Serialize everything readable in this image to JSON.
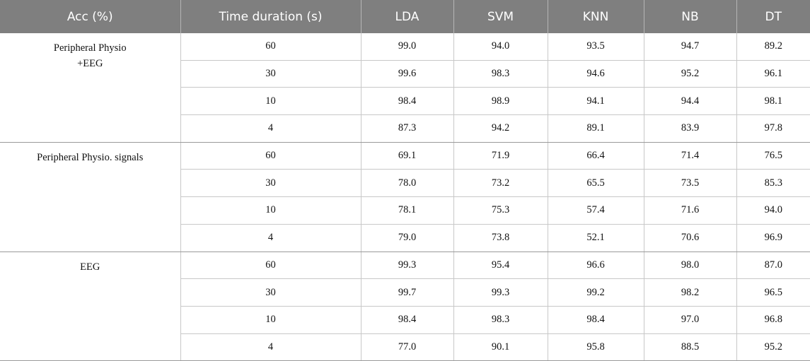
{
  "table": {
    "headers": [
      "Acc (%)",
      "Time duration (s)",
      "LDA",
      "SVM",
      "KNN",
      "NB",
      "DT"
    ],
    "groups": [
      {
        "label_lines": [
          "Peripheral Physio",
          "+EEG"
        ],
        "rows": [
          {
            "time": "60",
            "values": [
              "99.0",
              "94.0",
              "93.5",
              "94.7",
              "89.2"
            ]
          },
          {
            "time": "30",
            "values": [
              "99.6",
              "98.3",
              "94.6",
              "95.2",
              "96.1"
            ]
          },
          {
            "time": "10",
            "values": [
              "98.4",
              "98.9",
              "94.1",
              "94.4",
              "98.1"
            ]
          },
          {
            "time": "4",
            "values": [
              "87.3",
              "94.2",
              "89.1",
              "83.9",
              "97.8"
            ]
          }
        ]
      },
      {
        "label_lines": [
          "Peripheral Physio. signals"
        ],
        "rows": [
          {
            "time": "60",
            "values": [
              "69.1",
              "71.9",
              "66.4",
              "71.4",
              "76.5"
            ]
          },
          {
            "time": "30",
            "values": [
              "78.0",
              "73.2",
              "65.5",
              "73.5",
              "85.3"
            ]
          },
          {
            "time": "10",
            "values": [
              "78.1",
              "75.3",
              "57.4",
              "71.6",
              "94.0"
            ]
          },
          {
            "time": "4",
            "values": [
              "79.0",
              "73.8",
              "52.1",
              "70.6",
              "96.9"
            ]
          }
        ]
      },
      {
        "label_lines": [
          "EEG"
        ],
        "rows": [
          {
            "time": "60",
            "values": [
              "99.3",
              "95.4",
              "96.6",
              "98.0",
              "87.0"
            ]
          },
          {
            "time": "30",
            "values": [
              "99.7",
              "99.3",
              "99.2",
              "98.2",
              "96.5"
            ]
          },
          {
            "time": "10",
            "values": [
              "98.4",
              "98.3",
              "98.4",
              "97.0",
              "96.8"
            ]
          },
          {
            "time": "4",
            "values": [
              "77.0",
              "90.1",
              "95.8",
              "88.5",
              "95.2"
            ]
          }
        ]
      }
    ]
  }
}
